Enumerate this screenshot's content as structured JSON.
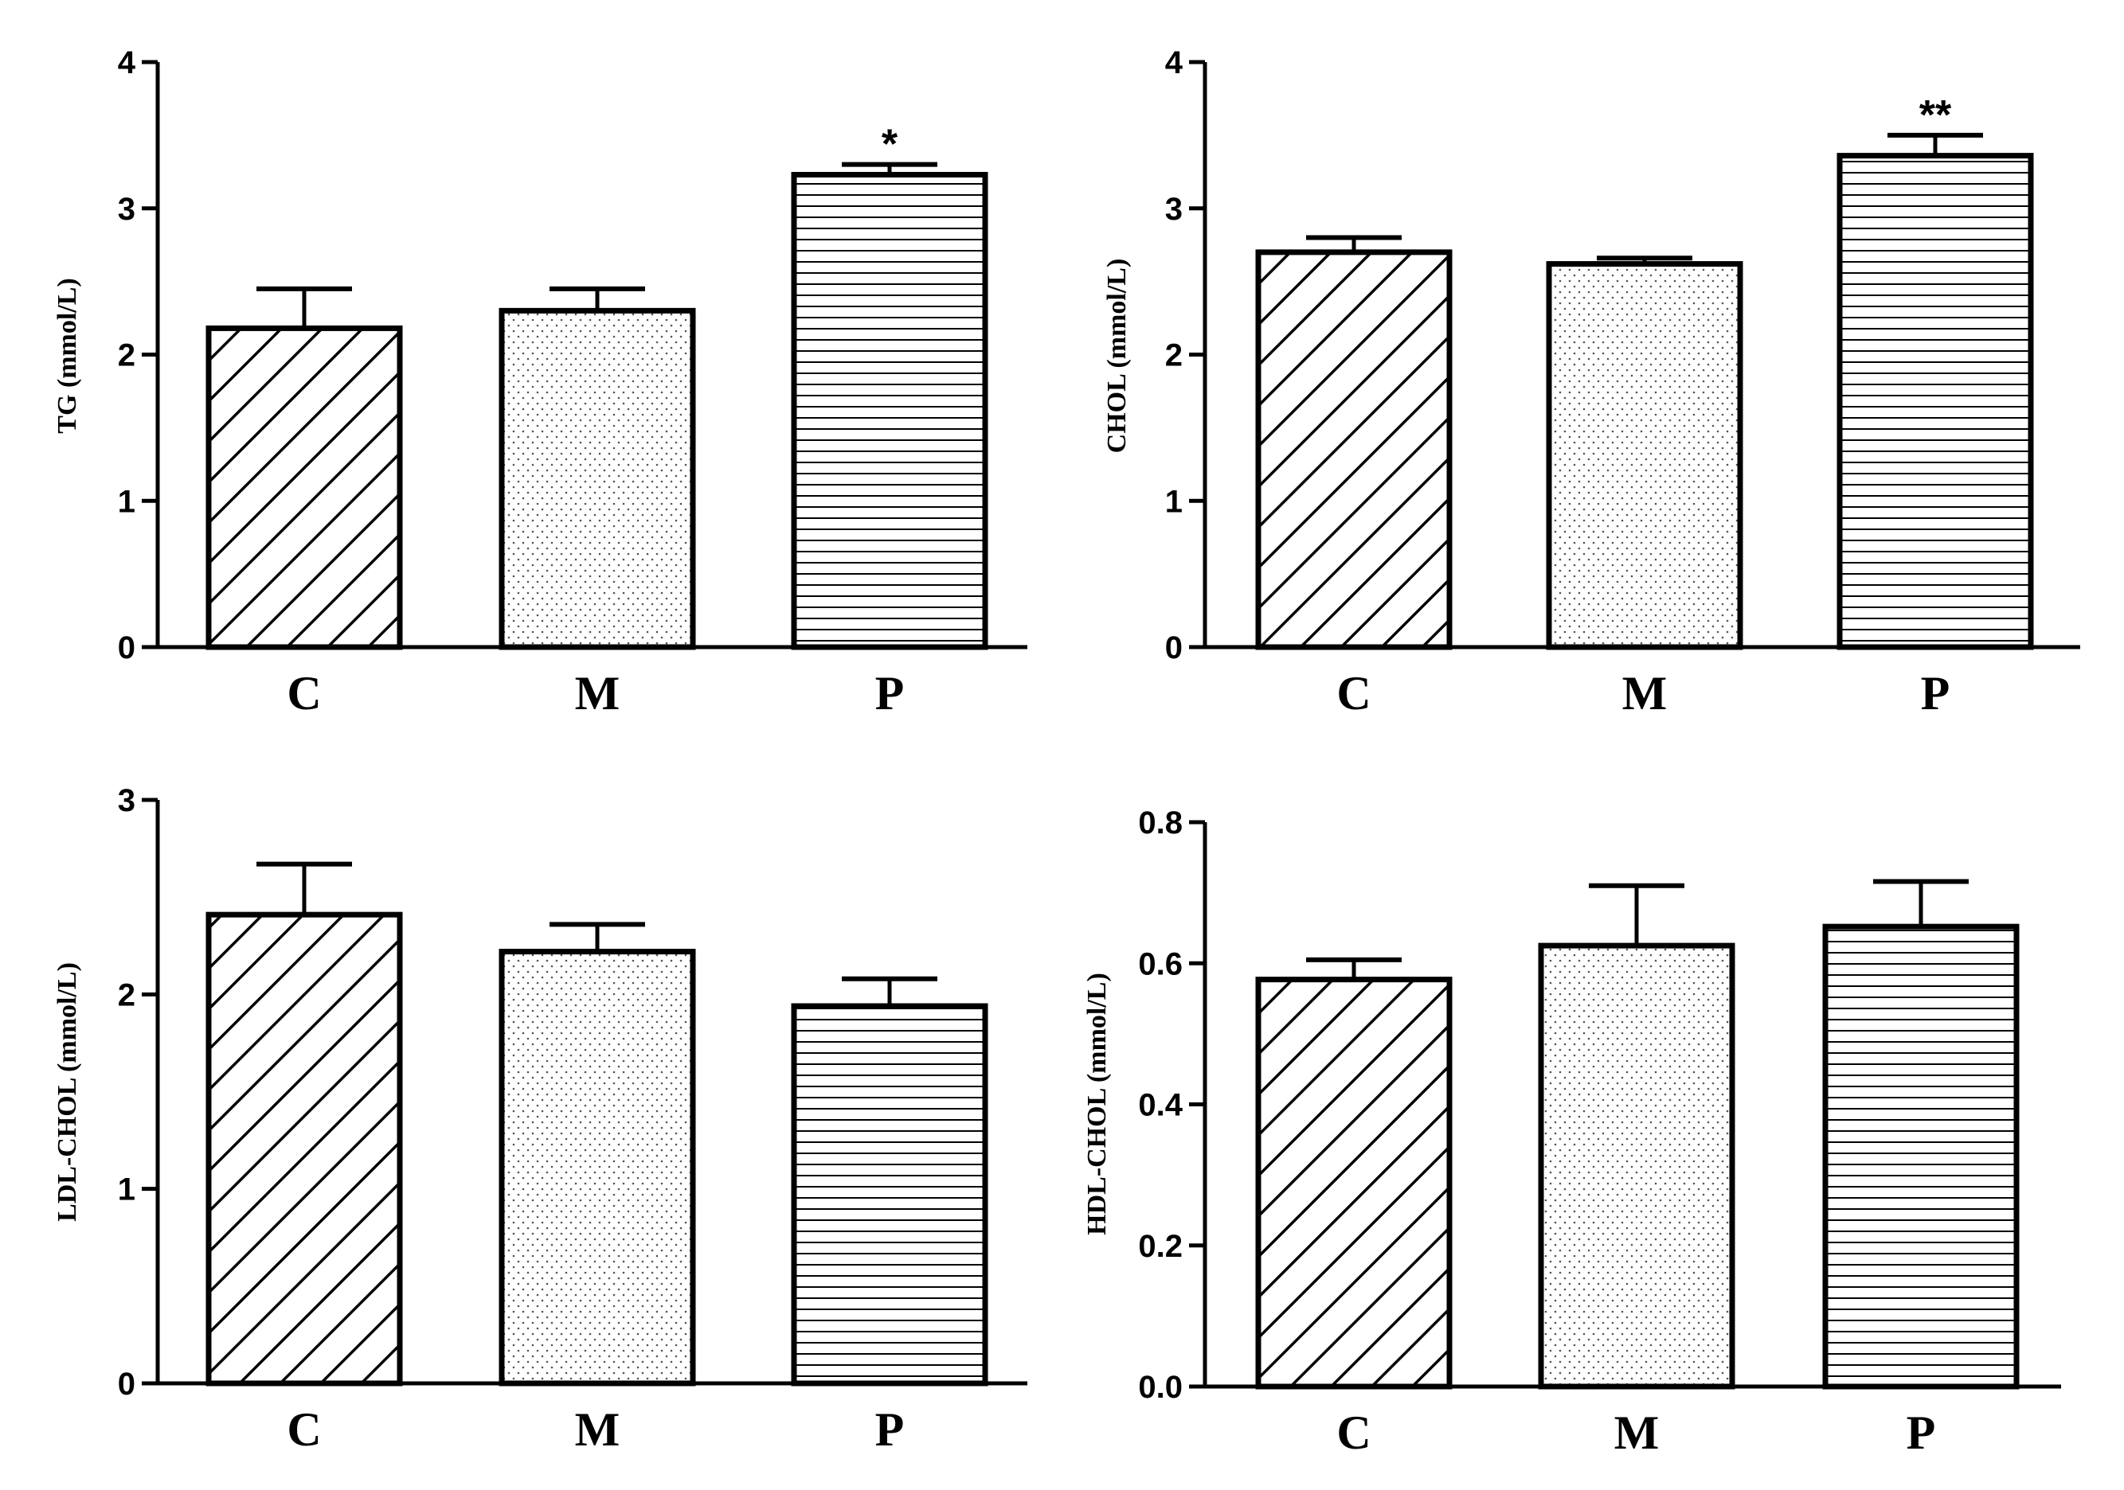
{
  "chart_data": [
    {
      "type": "bar",
      "ylabel": "TG (mmol/L)",
      "categories": [
        "C",
        "M",
        "P"
      ],
      "values": [
        2.18,
        2.3,
        3.23
      ],
      "errors": [
        0.27,
        0.15,
        0.07
      ],
      "annotations": [
        "",
        "",
        "*"
      ],
      "ylim": [
        0,
        4
      ],
      "yticks": [
        0,
        1,
        2,
        3,
        4
      ],
      "ytick_labels": [
        "0",
        "1",
        "2",
        "3",
        "4"
      ],
      "patterns": [
        "diagonal",
        "dots",
        "horizontal"
      ]
    },
    {
      "type": "bar",
      "ylabel": "CHOL (mmol/L)",
      "categories": [
        "C",
        "M",
        "P"
      ],
      "values": [
        2.7,
        2.62,
        3.36
      ],
      "errors": [
        0.1,
        0.04,
        0.14
      ],
      "annotations": [
        "",
        "",
        "**"
      ],
      "ylim": [
        0,
        4
      ],
      "yticks": [
        0,
        1,
        2,
        3,
        4
      ],
      "ytick_labels": [
        "0",
        "1",
        "2",
        "3",
        "4"
      ],
      "patterns": [
        "diagonal",
        "dots",
        "horizontal"
      ]
    },
    {
      "type": "bar",
      "ylabel": "LDL-CHOL (mmol/L)",
      "categories": [
        "C",
        "M",
        "P"
      ],
      "values": [
        2.41,
        2.22,
        1.94
      ],
      "errors": [
        0.26,
        0.14,
        0.14
      ],
      "annotations": [
        "",
        "",
        ""
      ],
      "ylim": [
        0,
        3
      ],
      "yticks": [
        0,
        1,
        2,
        3
      ],
      "ytick_labels": [
        "0",
        "1",
        "2",
        "3"
      ],
      "patterns": [
        "diagonal",
        "dots",
        "horizontal"
      ]
    },
    {
      "type": "bar",
      "ylabel": "HDL-CHOL (mmol/L)",
      "categories": [
        "C",
        "M",
        "P"
      ],
      "values": [
        0.577,
        0.625,
        0.652
      ],
      "errors": [
        0.028,
        0.085,
        0.064
      ],
      "annotations": [
        "",
        "",
        ""
      ],
      "ylim": [
        0,
        0.8
      ],
      "yticks": [
        0,
        0.2,
        0.4,
        0.6,
        0.8
      ],
      "ytick_labels": [
        "0.0",
        "0.2",
        "0.4",
        "0.6",
        "0.8"
      ],
      "patterns": [
        "diagonal",
        "dots",
        "horizontal"
      ]
    }
  ]
}
